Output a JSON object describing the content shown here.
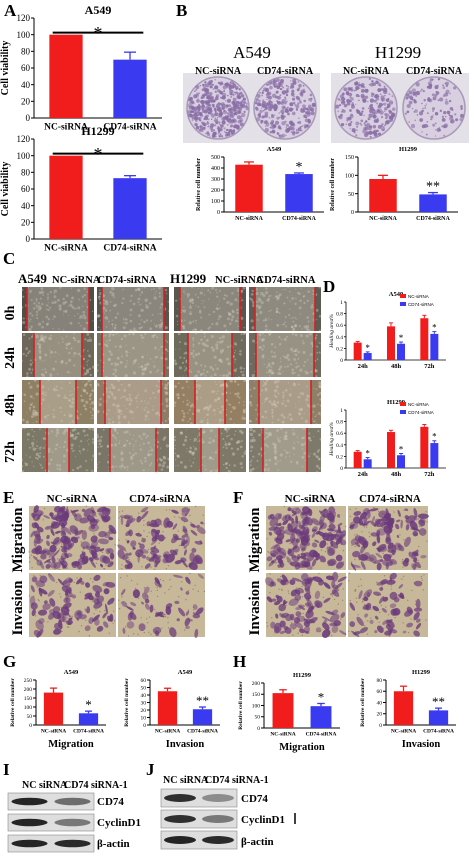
{
  "panels": {
    "A": {
      "letter": "A",
      "charts": [
        {
          "title": "A549",
          "ylabel": "Cell viability",
          "ticks": [
            0,
            20,
            40,
            60,
            80,
            100,
            120
          ],
          "ylim": [
            0,
            120
          ],
          "categories": [
            "NC-siRNA",
            "CD74-siRNA"
          ],
          "values": [
            100,
            70
          ],
          "errors": [
            0,
            9
          ],
          "sig": "*"
        },
        {
          "title": "H1299",
          "ylabel": "Cell viability",
          "ticks": [
            0,
            20,
            40,
            60,
            80,
            100,
            120
          ],
          "ylim": [
            0,
            120
          ],
          "categories": [
            "NC-siRNA",
            "CD74-siRNA"
          ],
          "values": [
            100,
            73
          ],
          "errors": [
            0,
            3
          ],
          "sig": "*"
        }
      ]
    },
    "B": {
      "letter": "B",
      "plate_labels": {
        "cell1": "A549",
        "cell2": "H1299",
        "nc": "NC-siRNA",
        "cd74": "CD74-siRNA"
      },
      "charts": [
        {
          "title": "A549",
          "ylabel": "Relative cell number",
          "ticks": [
            0,
            100,
            200,
            300,
            400,
            500
          ],
          "ylim": [
            0,
            500
          ],
          "categories": [
            "NC-siRNA",
            "CD74-siRNA"
          ],
          "values": [
            430,
            345
          ],
          "errors": [
            25,
            10
          ],
          "sig": "*"
        },
        {
          "title": "H1299",
          "ylabel": "Relative cell number",
          "ticks": [
            0,
            50,
            100,
            150
          ],
          "ylim": [
            0,
            150
          ],
          "categories": [
            "NC-siRNA",
            "CD74-siRNA"
          ],
          "values": [
            90,
            48
          ],
          "errors": [
            10,
            5
          ],
          "sig": "**"
        }
      ]
    },
    "C": {
      "letter": "C",
      "cell1": "A549",
      "cell2": "H1299",
      "nc": "NC-siRNA",
      "cd74": "CD74-siRNA",
      "times": [
        "0h",
        "24h",
        "48h",
        "72h"
      ]
    },
    "D": {
      "letter": "D",
      "charts": [
        {
          "title": "A549",
          "ylabel": "Healing area%",
          "ticks": [
            0,
            0.2,
            0.4,
            0.6,
            0.8,
            1
          ],
          "ylim": [
            0,
            1
          ],
          "categories": [
            "24h",
            "48h",
            "72h"
          ],
          "series": [
            {
              "name": "NC-siRNA",
              "values": [
                0.3,
                0.58,
                0.72
              ],
              "errors": [
                0.02,
                0.06,
                0.05
              ]
            },
            {
              "name": "CD74-siRNA",
              "values": [
                0.12,
                0.28,
                0.45
              ],
              "errors": [
                0.02,
                0.03,
                0.04
              ]
            }
          ],
          "sig": [
            "*",
            "*",
            "*"
          ]
        },
        {
          "title": "H1299",
          "ylabel": "Healing area%",
          "ticks": [
            0,
            0.2,
            0.4,
            0.6,
            0.8,
            1
          ],
          "ylim": [
            0,
            1
          ],
          "categories": [
            "24h",
            "48h",
            "72h"
          ],
          "series": [
            {
              "name": "NC-siRNA",
              "values": [
                0.28,
                0.62,
                0.71
              ],
              "errors": [
                0.02,
                0.03,
                0.04
              ]
            },
            {
              "name": "CD74-siRNA",
              "values": [
                0.15,
                0.22,
                0.43
              ],
              "errors": [
                0.03,
                0.03,
                0.04
              ]
            }
          ],
          "sig": [
            "*",
            "*",
            "*"
          ]
        }
      ]
    },
    "E": {
      "letter": "E",
      "nc": "NC-siRNA",
      "cd74": "CD74-siRNA",
      "rows": [
        "Migration",
        "Invasion"
      ]
    },
    "F": {
      "letter": "F",
      "nc": "NC-siRNA",
      "cd74": "CD74-siRNA",
      "rows": [
        "Migration",
        "Invasion"
      ]
    },
    "G": {
      "letter": "G",
      "charts": [
        {
          "title": "A549",
          "ylabel": "Relative cell number",
          "ticks": [
            0,
            50,
            100,
            150,
            200,
            250
          ],
          "ylim": [
            0,
            250
          ],
          "categories": [
            "NC-siRNA",
            "CD74-siRNA"
          ],
          "values": [
            180,
            65
          ],
          "errors": [
            25,
            12
          ],
          "sig": "*",
          "xlabel": "Migration"
        },
        {
          "title": "A549",
          "ylabel": "Relative cell number",
          "ticks": [
            0,
            10,
            20,
            30,
            40,
            50,
            60
          ],
          "ylim": [
            0,
            60
          ],
          "categories": [
            "NC-siRNA",
            "CD74-siRNA"
          ],
          "values": [
            45,
            21
          ],
          "errors": [
            4,
            3
          ],
          "sig": "**",
          "xlabel": "Invasion"
        }
      ]
    },
    "H": {
      "letter": "H",
      "charts": [
        {
          "title": "H1299",
          "ylabel": "Relative cell number",
          "ticks": [
            0,
            50,
            100,
            150,
            200
          ],
          "ylim": [
            0,
            200
          ],
          "categories": [
            "NC-siRNA",
            "CD74-siRNA"
          ],
          "values": [
            155,
            97
          ],
          "errors": [
            15,
            12
          ],
          "sig": "*",
          "xlabel": "Migration"
        },
        {
          "title": "H1299",
          "ylabel": "Relative cell number",
          "ticks": [
            0,
            20,
            40,
            60,
            80
          ],
          "ylim": [
            0,
            80
          ],
          "categories": [
            "NC-siRNA",
            "CD74-siRNA"
          ],
          "values": [
            60,
            26
          ],
          "errors": [
            9,
            4
          ],
          "sig": "**",
          "xlabel": "Invasion"
        }
      ]
    },
    "I": {
      "letter": "I",
      "nc": "NC siRNA",
      "cd74": "CD74 siRNA-1",
      "bands": [
        "CD74",
        "CyclinD1",
        "β-actin"
      ]
    },
    "J": {
      "letter": "J",
      "nc": "NC siRNA",
      "cd74": "CD74 siRNA-1",
      "bands": [
        "CD74",
        "CyclinD1",
        "β-actin"
      ]
    }
  },
  "colors": {
    "nc": "#f11d1d",
    "cd74": "#3a3af0",
    "line": "#d32020",
    "plate": "#8a6fa6",
    "stain": "#6b3a7c",
    "wound": "#9a8f7c"
  },
  "chart_data": [
    {
      "type": "bar",
      "title": "A549",
      "ylabel": "Cell viability",
      "categories": [
        "NC-siRNA",
        "CD74-siRNA"
      ],
      "values": [
        100,
        70
      ],
      "ylim": [
        0,
        120
      ]
    },
    {
      "type": "bar",
      "title": "H1299",
      "ylabel": "Cell viability",
      "categories": [
        "NC-siRNA",
        "CD74-siRNA"
      ],
      "values": [
        100,
        73
      ],
      "ylim": [
        0,
        120
      ]
    },
    {
      "type": "bar",
      "title": "A549",
      "ylabel": "Relative cell number",
      "categories": [
        "NC-siRNA",
        "CD74-siRNA"
      ],
      "values": [
        430,
        345
      ],
      "ylim": [
        0,
        500
      ]
    },
    {
      "type": "bar",
      "title": "H1299",
      "ylabel": "Relative cell number",
      "categories": [
        "NC-siRNA",
        "CD74-siRNA"
      ],
      "values": [
        90,
        48
      ],
      "ylim": [
        0,
        150
      ]
    },
    {
      "type": "bar",
      "title": "A549",
      "ylabel": "Healing area%",
      "categories": [
        "24h",
        "48h",
        "72h"
      ],
      "series": [
        {
          "name": "NC-siRNA",
          "values": [
            0.3,
            0.58,
            0.72
          ]
        },
        {
          "name": "CD74-siRNA",
          "values": [
            0.12,
            0.28,
            0.45
          ]
        }
      ],
      "ylim": [
        0,
        1
      ]
    },
    {
      "type": "bar",
      "title": "H1299",
      "ylabel": "Healing area%",
      "categories": [
        "24h",
        "48h",
        "72h"
      ],
      "series": [
        {
          "name": "NC-siRNA",
          "values": [
            0.28,
            0.62,
            0.71
          ]
        },
        {
          "name": "CD74-siRNA",
          "values": [
            0.15,
            0.22,
            0.43
          ]
        }
      ],
      "ylim": [
        0,
        1
      ]
    },
    {
      "type": "bar",
      "title": "A549",
      "ylabel": "Relative cell number",
      "xlabel": "Migration",
      "categories": [
        "NC-siRNA",
        "CD74-siRNA"
      ],
      "values": [
        180,
        65
      ],
      "ylim": [
        0,
        250
      ]
    },
    {
      "type": "bar",
      "title": "A549",
      "ylabel": "Relative cell number",
      "xlabel": "Invasion",
      "categories": [
        "NC-siRNA",
        "CD74-siRNA"
      ],
      "values": [
        45,
        21
      ],
      "ylim": [
        0,
        60
      ]
    },
    {
      "type": "bar",
      "title": "H1299",
      "ylabel": "Relative cell number",
      "xlabel": "Migration",
      "categories": [
        "NC-siRNA",
        "CD74-siRNA"
      ],
      "values": [
        155,
        97
      ],
      "ylim": [
        0,
        200
      ]
    },
    {
      "type": "bar",
      "title": "H1299",
      "ylabel": "Relative cell number",
      "xlabel": "Invasion",
      "categories": [
        "NC-siRNA",
        "CD74-siRNA"
      ],
      "values": [
        60,
        26
      ],
      "ylim": [
        0,
        80
      ]
    }
  ]
}
